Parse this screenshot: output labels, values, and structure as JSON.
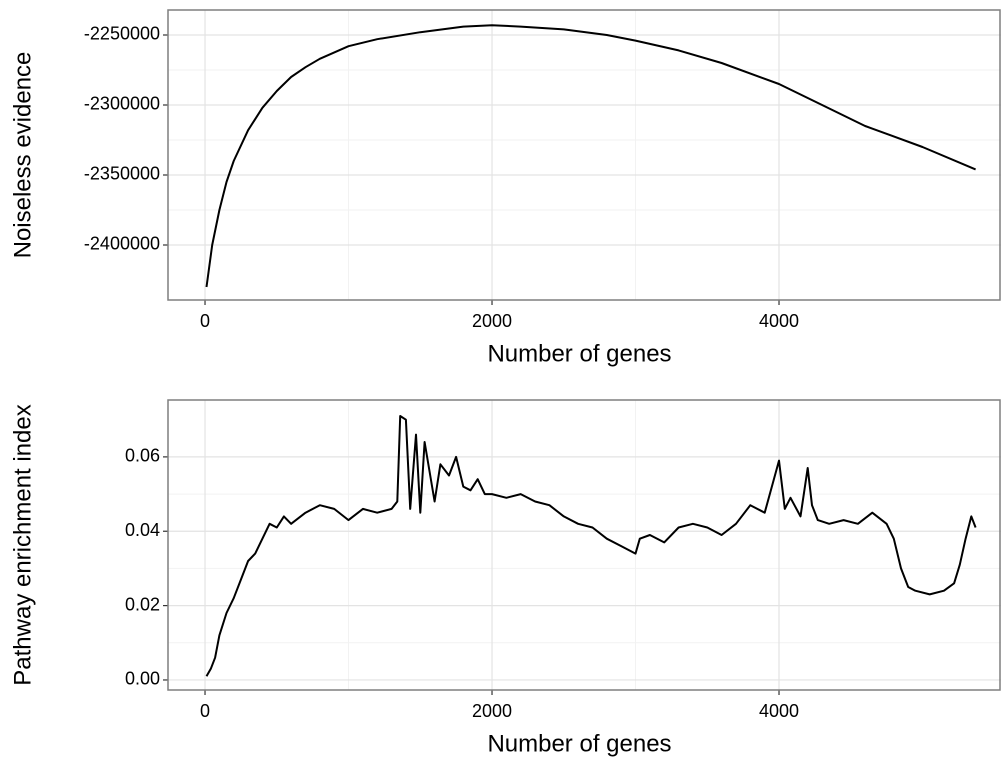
{
  "chart_data": [
    {
      "type": "line",
      "xlabel": "Number of genes",
      "ylabel": "Noiseless evidence",
      "color": "#000000",
      "grid": true,
      "x": [
        10,
        50,
        100,
        150,
        200,
        300,
        400,
        500,
        600,
        700,
        800,
        1000,
        1200,
        1500,
        1800,
        2000,
        2200,
        2500,
        2800,
        3000,
        3300,
        3600,
        4000,
        4300,
        4600,
        5000,
        5370
      ],
      "values": [
        -2430000,
        -2400000,
        -2375000,
        -2355000,
        -2340000,
        -2318000,
        -2302000,
        -2290000,
        -2280000,
        -2273000,
        -2267000,
        -2258000,
        -2253000,
        -2248000,
        -2244000,
        -2243000,
        -2244000,
        -2246000,
        -2250000,
        -2254000,
        -2261000,
        -2270000,
        -2285000,
        -2300000,
        -2315000,
        -2330000,
        -2346000
      ],
      "xlim": [
        -258,
        5547
      ],
      "xticks": [
        0,
        2000,
        4000
      ],
      "ylim": [
        -2439286,
        -2232143
      ],
      "yticks": [
        -2400000,
        -2350000,
        -2300000,
        -2250000
      ]
    },
    {
      "type": "line",
      "xlabel": "Number of genes",
      "ylabel": "Pathway enrichment index",
      "color": "#000000",
      "grid": true,
      "x": [
        10,
        40,
        70,
        100,
        150,
        200,
        250,
        300,
        350,
        400,
        450,
        500,
        550,
        600,
        700,
        800,
        900,
        1000,
        1100,
        1200,
        1300,
        1340,
        1360,
        1400,
        1430,
        1470,
        1500,
        1530,
        1600,
        1640,
        1700,
        1750,
        1800,
        1850,
        1900,
        1950,
        2000,
        2100,
        2200,
        2300,
        2400,
        2500,
        2600,
        2700,
        2800,
        2900,
        3000,
        3030,
        3100,
        3200,
        3300,
        3400,
        3500,
        3600,
        3700,
        3800,
        3900,
        4000,
        4040,
        4080,
        4150,
        4200,
        4230,
        4270,
        4350,
        4450,
        4550,
        4650,
        4750,
        4800,
        4850,
        4900,
        4950,
        5050,
        5150,
        5220,
        5260,
        5300,
        5340,
        5370
      ],
      "values": [
        0.001,
        0.003,
        0.006,
        0.012,
        0.018,
        0.022,
        0.027,
        0.032,
        0.034,
        0.038,
        0.042,
        0.041,
        0.044,
        0.042,
        0.045,
        0.047,
        0.046,
        0.043,
        0.046,
        0.045,
        0.046,
        0.048,
        0.071,
        0.07,
        0.046,
        0.066,
        0.045,
        0.064,
        0.048,
        0.058,
        0.055,
        0.06,
        0.052,
        0.051,
        0.054,
        0.05,
        0.05,
        0.049,
        0.05,
        0.048,
        0.047,
        0.044,
        0.042,
        0.041,
        0.038,
        0.036,
        0.034,
        0.038,
        0.039,
        0.037,
        0.041,
        0.042,
        0.041,
        0.039,
        0.042,
        0.047,
        0.045,
        0.059,
        0.046,
        0.049,
        0.044,
        0.057,
        0.047,
        0.043,
        0.042,
        0.043,
        0.042,
        0.045,
        0.042,
        0.038,
        0.03,
        0.025,
        0.024,
        0.023,
        0.024,
        0.026,
        0.031,
        0.038,
        0.044,
        0.041
      ],
      "xlim": [
        -258,
        5547
      ],
      "xticks": [
        0,
        2000,
        4000
      ],
      "ylim": [
        -0.0027,
        0.0753
      ],
      "yticks": [
        {
          "value": 0,
          "label": "0.00"
        },
        0.02,
        0.04,
        0.06
      ]
    }
  ]
}
